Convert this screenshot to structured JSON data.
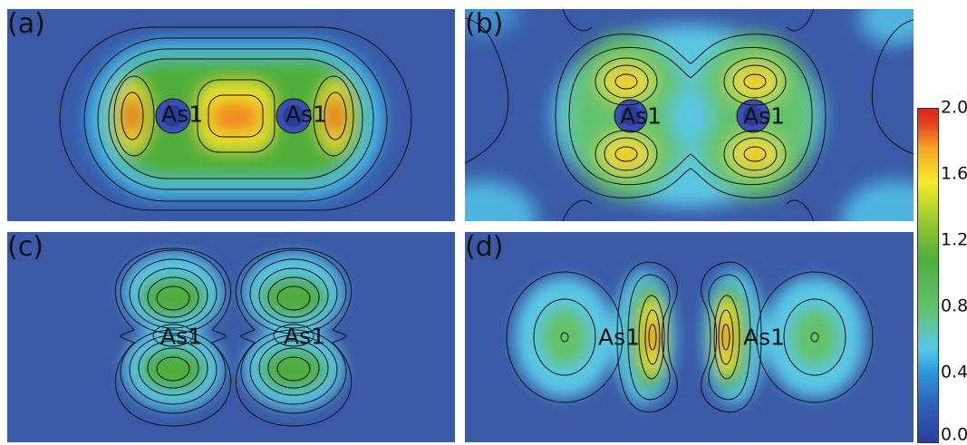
{
  "panels": {
    "a": {
      "label": "(a)",
      "atoms": [
        "As1",
        "As1"
      ]
    },
    "b": {
      "label": "(b)",
      "atoms": [
        "As1",
        "As1"
      ]
    },
    "c": {
      "label": "(c)",
      "atoms": [
        "As1",
        "As1"
      ]
    },
    "d": {
      "label": "(d)",
      "atoms": [
        "As1",
        "As1"
      ]
    }
  },
  "colorbar": {
    "min": 0.0,
    "max": 2.0,
    "ticks": [
      "2.0",
      "1.6",
      "1.2",
      "0.8",
      "0.4",
      "0.0"
    ],
    "colors": [
      "#2b3f9a",
      "#2f9fe0",
      "#57c8e8",
      "#4fae3b",
      "#f2ec2a",
      "#d9251c"
    ]
  }
}
